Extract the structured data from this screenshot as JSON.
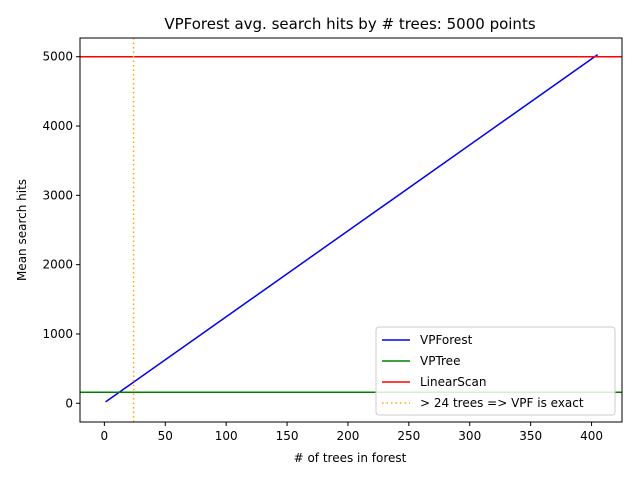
{
  "chart_data": {
    "type": "line",
    "title": "VPForest avg. search hits by # trees: 5000 points",
    "xlabel": "# of trees in forest",
    "ylabel": "Mean search hits",
    "xlim": [
      -20,
      425
    ],
    "ylim": [
      -270,
      5270
    ],
    "xticks": [
      0,
      50,
      100,
      150,
      200,
      250,
      300,
      350,
      400
    ],
    "yticks": [
      0,
      1000,
      2000,
      3000,
      4000,
      5000
    ],
    "grid": false,
    "legend_position": "lower-right",
    "series": [
      {
        "name": "VPForest",
        "kind": "line",
        "color": "#0000ff",
        "style": "solid",
        "x": [
          1,
          405
        ],
        "y": [
          20,
          5030
        ]
      },
      {
        "name": "VPTree",
        "kind": "hline",
        "color": "#008000",
        "style": "solid",
        "y": 160
      },
      {
        "name": "LinearScan",
        "kind": "hline",
        "color": "#ff0000",
        "style": "solid",
        "y": 5000
      },
      {
        "name": "> 24 trees => VPF is exact",
        "kind": "vline",
        "color": "#ffa500",
        "style": "dotted",
        "x": 24
      }
    ]
  }
}
